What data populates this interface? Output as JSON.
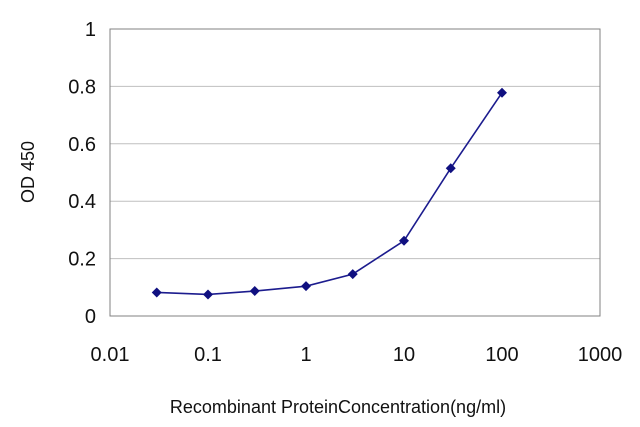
{
  "chart_data": {
    "type": "line",
    "title": "",
    "xlabel": "Recombinant ProteinConcentration(ng/ml)",
    "ylabel": "OD 450",
    "x_scale": "log",
    "xlim": [
      0.01,
      1000
    ],
    "ylim": [
      0,
      1
    ],
    "x_ticks": [
      "0.01",
      "0.1",
      "1",
      "10",
      "100",
      "1000"
    ],
    "y_ticks": [
      "0",
      "0.2",
      "0.4",
      "0.6",
      "0.8",
      "1"
    ],
    "grid": "horizontal",
    "legend": "none",
    "series": [
      {
        "x": [
          0.03,
          0.1,
          0.3,
          1,
          3,
          10,
          30,
          100
        ],
        "y": [
          0.082,
          0.075,
          0.087,
          0.104,
          0.146,
          0.262,
          0.515,
          0.778
        ]
      }
    ],
    "colors": {
      "series": "#1c1c8e",
      "marker": "#101080",
      "grid": "#bfbfbf",
      "axis": "#808080"
    }
  }
}
